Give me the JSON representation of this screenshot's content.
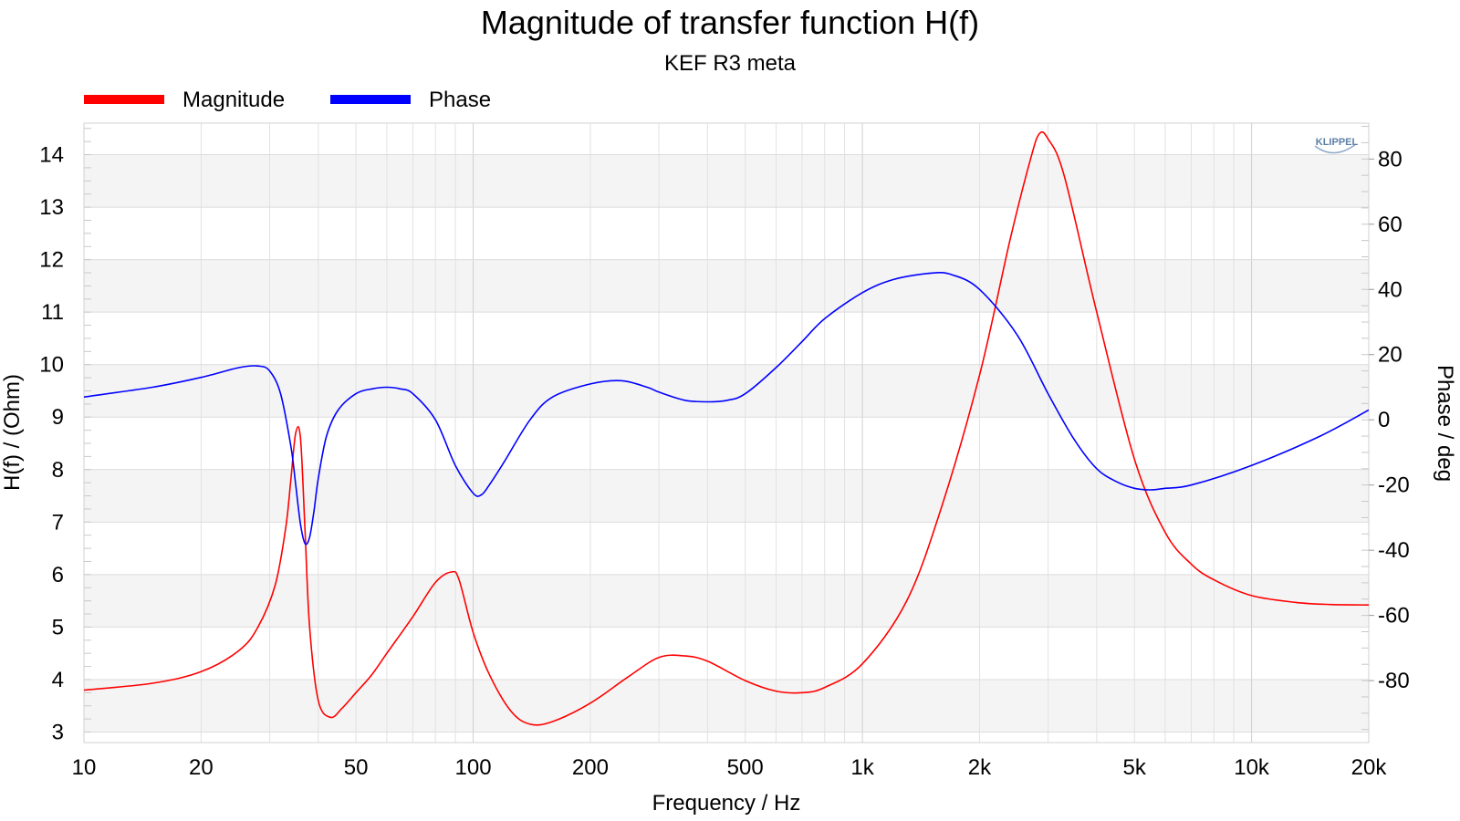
{
  "chart_data": {
    "type": "line",
    "title": "Magnitude of transfer function H(f)",
    "subtitle": "KEF R3 meta",
    "logo": "KLIPPEL",
    "xlabel": "Frequency / Hz",
    "ylabel_left": "H(f) / (Ohm)",
    "ylabel_right": "Phase / deg",
    "x_scale": "log",
    "xlim": [
      10,
      20000
    ],
    "ylim_left": [
      2.8,
      14.6
    ],
    "ylim_right": [
      -99,
      91
    ],
    "x_ticks": [
      10,
      20,
      50,
      100,
      200,
      500,
      1000,
      2000,
      5000,
      10000,
      20000
    ],
    "x_tick_labels": [
      "10",
      "20",
      "50",
      "100",
      "200",
      "500",
      "1k",
      "2k",
      "5k",
      "10k",
      "20k"
    ],
    "y_left_ticks": [
      3,
      4,
      5,
      6,
      7,
      8,
      9,
      10,
      11,
      12,
      13,
      14
    ],
    "y_left_tick_labels": [
      "3",
      "4",
      "5",
      "6",
      "7",
      "8",
      "9",
      "10",
      "11",
      "12",
      "13",
      "14"
    ],
    "y_right_ticks": [
      -80,
      -60,
      -40,
      -20,
      0,
      20,
      40,
      60,
      80
    ],
    "y_right_tick_labels": [
      "-80",
      "-60",
      "-40",
      "-20",
      "0",
      "20",
      "40",
      "60",
      "80"
    ],
    "grid": true,
    "legend_position": "top-left",
    "series": [
      {
        "name": "Magnitude",
        "axis": "left",
        "color": "#ff0000",
        "x": [
          10,
          15,
          20,
          25,
          28,
          31,
          33,
          34,
          35,
          36,
          37,
          38,
          40,
          43,
          46,
          50,
          55,
          60,
          70,
          80,
          88,
          92,
          100,
          110,
          125,
          140,
          160,
          200,
          250,
          300,
          350,
          400,
          500,
          600,
          700,
          800,
          1000,
          1300,
          1600,
          2000,
          2400,
          2700,
          2850,
          3000,
          3300,
          4000,
          5000,
          6000,
          7000,
          8000,
          10000,
          13000,
          16000,
          20000
        ],
        "values": [
          3.8,
          3.93,
          4.15,
          4.55,
          5.0,
          5.8,
          6.9,
          7.8,
          8.7,
          8.6,
          6.8,
          5.0,
          3.6,
          3.28,
          3.45,
          3.75,
          4.1,
          4.5,
          5.2,
          5.85,
          6.05,
          5.9,
          4.9,
          4.1,
          3.4,
          3.15,
          3.2,
          3.55,
          4.05,
          4.42,
          4.45,
          4.35,
          3.98,
          3.78,
          3.75,
          3.85,
          4.3,
          5.5,
          7.3,
          9.8,
          12.4,
          13.9,
          14.4,
          14.3,
          13.6,
          11.0,
          8.2,
          6.8,
          6.2,
          5.9,
          5.6,
          5.47,
          5.43,
          5.42
        ]
      },
      {
        "name": "Phase",
        "axis": "right",
        "color": "#0000ff",
        "x": [
          10,
          15,
          20,
          25,
          28,
          30,
          32,
          34,
          35,
          36,
          37,
          38,
          39,
          40,
          42,
          45,
          50,
          55,
          60,
          65,
          70,
          80,
          90,
          100,
          105,
          110,
          120,
          140,
          160,
          200,
          240,
          280,
          300,
          350,
          400,
          450,
          500,
          600,
          700,
          800,
          1000,
          1200,
          1500,
          1700,
          2000,
          2500,
          3000,
          3500,
          4000,
          4500,
          5000,
          5500,
          6000,
          7000,
          10000,
          15000,
          20000
        ],
        "values": [
          7,
          10,
          13,
          16,
          16.5,
          15,
          8,
          -8,
          -20,
          -32,
          -38,
          -36,
          -28,
          -18,
          -5,
          3,
          8,
          9.5,
          10,
          9.5,
          8,
          0,
          -14,
          -22.5,
          -23,
          -20,
          -13,
          0,
          7,
          11,
          12,
          10,
          8.5,
          6,
          5.5,
          6,
          8,
          16,
          24,
          31,
          39,
          43,
          45,
          44.5,
          40,
          26,
          8,
          -6,
          -15,
          -19,
          -21,
          -21.5,
          -21,
          -20,
          -14,
          -5,
          3
        ]
      }
    ]
  }
}
